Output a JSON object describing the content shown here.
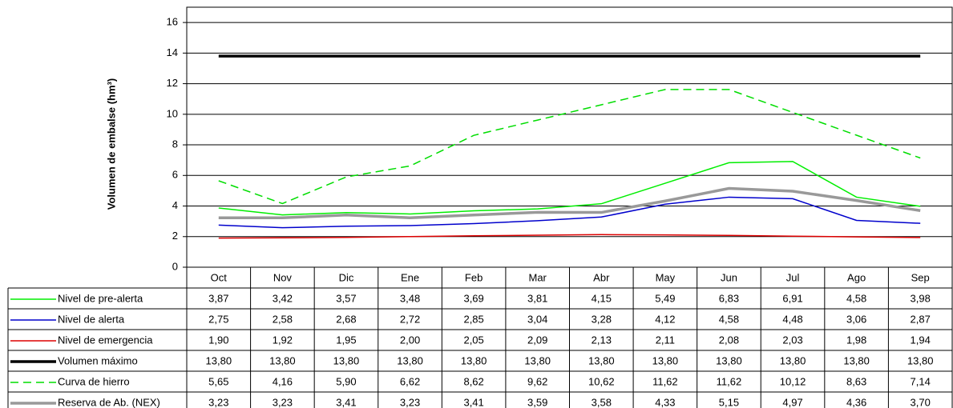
{
  "chart_data": {
    "type": "line",
    "y_label": "Volumen de embalse (hm³)",
    "categories": [
      "Oct",
      "Nov",
      "Dic",
      "Ene",
      "Feb",
      "Mar",
      "Abr",
      "May",
      "Jun",
      "Jul",
      "Ago",
      "Sep"
    ],
    "ylim": [
      0,
      17
    ],
    "yticks": [
      0,
      2,
      4,
      6,
      8,
      10,
      12,
      14,
      16
    ],
    "grid": true,
    "series": [
      {
        "name": "Nivel de pre-alerta",
        "color": "#00ee00",
        "width": 1.5,
        "dash": "none",
        "values": [
          3.87,
          3.42,
          3.57,
          3.48,
          3.69,
          3.81,
          4.15,
          5.49,
          6.83,
          6.91,
          4.58,
          3.98
        ],
        "value_labels": [
          "3,87",
          "3,42",
          "3,57",
          "3,48",
          "3,69",
          "3,81",
          "4,15",
          "5,49",
          "6,83",
          "6,91",
          "4,58",
          "3,98"
        ]
      },
      {
        "name": "Nivel de alerta",
        "color": "#0000cc",
        "width": 1.5,
        "dash": "none",
        "values": [
          2.75,
          2.58,
          2.68,
          2.72,
          2.85,
          3.04,
          3.28,
          4.12,
          4.58,
          4.48,
          3.06,
          2.87
        ],
        "value_labels": [
          "2,75",
          "2,58",
          "2,68",
          "2,72",
          "2,85",
          "3,04",
          "3,28",
          "4,12",
          "4,58",
          "4,48",
          "3,06",
          "2,87"
        ]
      },
      {
        "name": "Nivel de emergencia",
        "color": "#dd0000",
        "width": 1.5,
        "dash": "none",
        "values": [
          1.9,
          1.92,
          1.95,
          2.0,
          2.05,
          2.09,
          2.13,
          2.11,
          2.08,
          2.03,
          1.98,
          1.94
        ],
        "value_labels": [
          "1,90",
          "1,92",
          "1,95",
          "2,00",
          "2,05",
          "2,09",
          "2,13",
          "2,11",
          "2,08",
          "2,03",
          "1,98",
          "1,94"
        ]
      },
      {
        "name": "Volumen máximo",
        "color": "#000000",
        "width": 3.5,
        "dash": "none",
        "values": [
          13.8,
          13.8,
          13.8,
          13.8,
          13.8,
          13.8,
          13.8,
          13.8,
          13.8,
          13.8,
          13.8,
          13.8
        ],
        "value_labels": [
          "13,80",
          "13,80",
          "13,80",
          "13,80",
          "13,80",
          "13,80",
          "13,80",
          "13,80",
          "13,80",
          "13,80",
          "13,80",
          "13,80"
        ]
      },
      {
        "name": "Curva de hierro",
        "color": "#00dd00",
        "width": 1.5,
        "dash": "10,6",
        "values": [
          5.65,
          4.16,
          5.9,
          6.62,
          8.62,
          9.62,
          10.62,
          11.62,
          11.62,
          10.12,
          8.63,
          7.14
        ],
        "value_labels": [
          "5,65",
          "4,16",
          "5,90",
          "6,62",
          "8,62",
          "9,62",
          "10,62",
          "11,62",
          "11,62",
          "10,12",
          "8,63",
          "7,14"
        ]
      },
      {
        "name": "Reserva de Ab. (NEX)",
        "color": "#999999",
        "width": 3.5,
        "dash": "none",
        "values": [
          3.23,
          3.23,
          3.41,
          3.23,
          3.41,
          3.59,
          3.58,
          4.33,
          5.15,
          4.97,
          4.36,
          3.7
        ],
        "value_labels": [
          "3,23",
          "3,23",
          "3,41",
          "3,23",
          "3,41",
          "3,59",
          "3,58",
          "4,33",
          "5,15",
          "4,97",
          "4,36",
          "3,70"
        ]
      }
    ]
  }
}
